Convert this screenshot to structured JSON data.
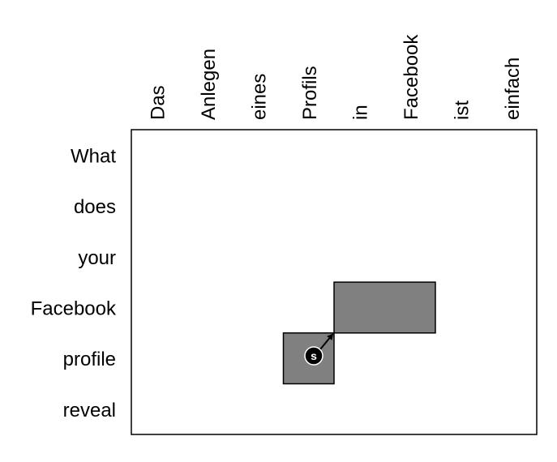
{
  "source_words": [
    "Das",
    "Anlegen",
    "eines",
    "Profils",
    "in",
    "Facebook",
    "ist",
    "einfach"
  ],
  "target_words": [
    "What",
    "does",
    "your",
    "Facebook",
    "profile",
    "reveal"
  ],
  "alignment_blocks": [
    {
      "name": "block-profile-profils",
      "target_row": 4,
      "source_start": 3,
      "source_end": 3
    },
    {
      "name": "block-facebook-in-facebook",
      "target_row": 3,
      "source_start": 4,
      "source_end": 5
    }
  ],
  "marker": {
    "label": "s"
  },
  "colors": {
    "block_fill": "#808080",
    "border": "#000000",
    "marker_fill": "#000000",
    "marker_text": "#ffffff"
  }
}
